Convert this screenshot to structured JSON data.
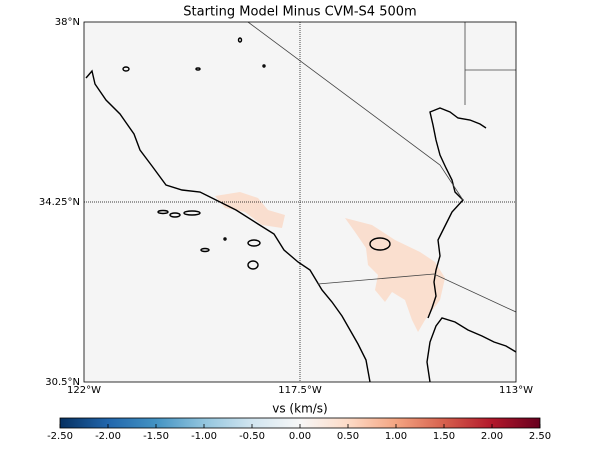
{
  "chart_data": {
    "type": "map",
    "title": "Starting Model Minus CVM-S4 500m",
    "xlim": [
      -122,
      -113
    ],
    "ylim": [
      30.5,
      38
    ],
    "xticks": [
      {
        "value": -122,
        "label": "122°W"
      },
      {
        "value": -117.5,
        "label": "117.5°W"
      },
      {
        "value": -113,
        "label": "113°W"
      }
    ],
    "yticks": [
      {
        "value": 30.5,
        "label": "30.5°N"
      },
      {
        "value": 34.25,
        "label": "34.25°N"
      },
      {
        "value": 38,
        "label": "38°N"
      }
    ],
    "grid": true,
    "colorbar": {
      "label": "vs (km/s)",
      "lim": [
        -2.5,
        2.5
      ],
      "ticks": [
        {
          "value": -2.5,
          "label": "-2.50"
        },
        {
          "value": -2,
          "label": "-2.00"
        },
        {
          "value": -1.5,
          "label": "-1.50"
        },
        {
          "value": -1,
          "label": "-1.00"
        },
        {
          "value": -0.5,
          "label": "-0.50"
        },
        {
          "value": 0,
          "label": "0.00"
        },
        {
          "value": 0.5,
          "label": "0.50"
        },
        {
          "value": 1,
          "label": "1.00"
        },
        {
          "value": 1.5,
          "label": "1.50"
        },
        {
          "value": 2,
          "label": "2.00"
        },
        {
          "value": 2.5,
          "label": "2.50"
        }
      ]
    }
  }
}
